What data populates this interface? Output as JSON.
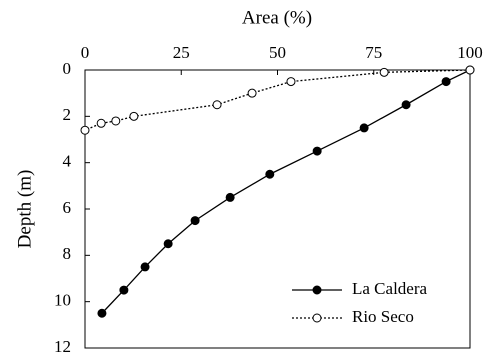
{
  "chart_data": {
    "type": "line",
    "x_label": "Area (%)",
    "y_label": "Depth (m)",
    "xlim": [
      0,
      100
    ],
    "xticks": [
      0,
      25,
      50,
      75,
      100
    ],
    "ylim": [
      0,
      12
    ],
    "yticks": [
      0,
      2,
      4,
      6,
      8,
      10,
      12
    ],
    "y_inverted": true,
    "x_axis_position": "top",
    "legend_position": "lower right",
    "series": [
      {
        "name": "La Caldera",
        "color": "#000000",
        "line_style": "solid",
        "marker_fill": "#000000",
        "x": [
          100,
          93.8,
          83.4,
          72.5,
          60.3,
          48,
          37.7,
          28.6,
          21.6,
          15.6,
          10.1,
          4.4
        ],
        "values": [
          0,
          0.5,
          1.5,
          2.5,
          3.5,
          4.5,
          5.5,
          6.5,
          7.5,
          8.5,
          9.5,
          10.5
        ]
      },
      {
        "name": "Rio Seco",
        "color": "#000000",
        "line_style": "dotted",
        "marker_fill": "#ffffff",
        "x": [
          100,
          77.7,
          53.5,
          43.4,
          34.3,
          12.7,
          8,
          4.2,
          0
        ],
        "values": [
          0,
          0.1,
          0.5,
          1,
          1.5,
          2,
          2.2,
          2.3,
          2.6
        ]
      }
    ]
  }
}
